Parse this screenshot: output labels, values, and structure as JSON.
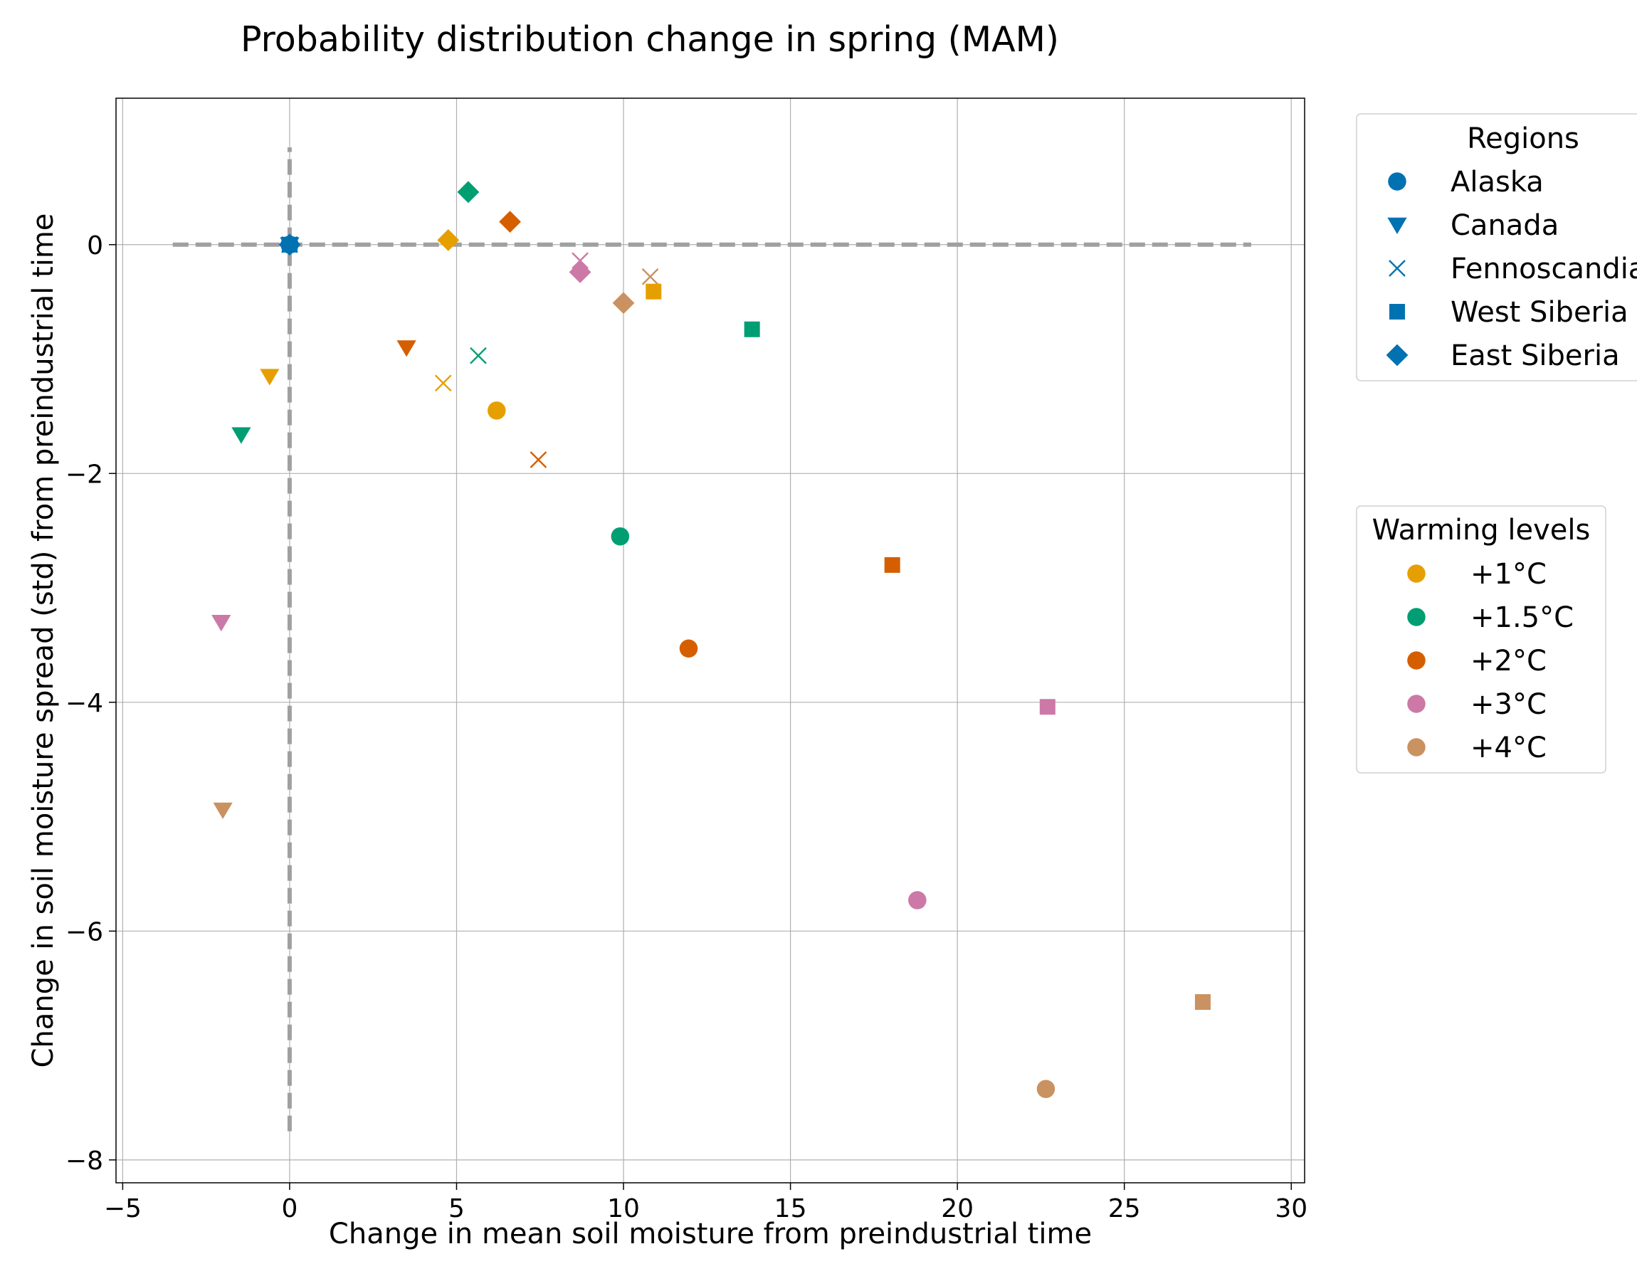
{
  "chart_data": {
    "type": "scatter",
    "title": "Probability distribution change in spring (MAM)",
    "xlabel": "Change in mean soil moisture from preindustrial time",
    "ylabel": "Change in soil moisture spread (std) from preindustrial time",
    "xlim": [
      -5.2,
      30.4
    ],
    "ylim": [
      -8.2,
      1.28
    ],
    "xticks": [
      -5,
      0,
      5,
      10,
      15,
      20,
      25,
      30
    ],
    "xtick_labels": [
      "−5",
      "0",
      "5",
      "10",
      "15",
      "20",
      "25",
      "30"
    ],
    "yticks": [
      -8,
      -6,
      -4,
      -2,
      0
    ],
    "ytick_labels": [
      "−8",
      "−6",
      "−4",
      "−2",
      "0"
    ],
    "grid": true,
    "reference_lines": {
      "horizontal": {
        "y": 0,
        "x_from": -3.5,
        "x_to": 28.8,
        "style": "dashed",
        "color": "#a0a0a0"
      },
      "vertical": {
        "x": 0,
        "y_from": -7.75,
        "y_to": 0.85,
        "style": "dashed",
        "color": "#a0a0a0"
      }
    },
    "regions_legend": {
      "title": "Regions",
      "placement": "outside right, upper",
      "color": "#0072B2",
      "entries": [
        {
          "name": "Alaska",
          "marker": "circle"
        },
        {
          "name": "Canada",
          "marker": "triangle-down"
        },
        {
          "name": "Fennoscandia",
          "marker": "x"
        },
        {
          "name": "West Siberia",
          "marker": "square"
        },
        {
          "name": "East Siberia",
          "marker": "diamond"
        }
      ]
    },
    "warming_legend": {
      "title": "Warming levels",
      "placement": "outside right, middle",
      "entries": [
        {
          "name": "+1°C",
          "color": "#E69F00"
        },
        {
          "name": "+1.5°C",
          "color": "#009E73"
        },
        {
          "name": "+2°C",
          "color": "#D55E00"
        },
        {
          "name": "+3°C",
          "color": "#CC79A7"
        },
        {
          "name": "+4°C",
          "color": "#CA9161"
        }
      ]
    },
    "points": [
      {
        "region": "Alaska",
        "marker": "circle",
        "level": 0,
        "x": 6.2,
        "y": -1.45
      },
      {
        "region": "Alaska",
        "marker": "circle",
        "level": 1,
        "x": 9.9,
        "y": -2.55
      },
      {
        "region": "Alaska",
        "marker": "circle",
        "level": 2,
        "x": 11.95,
        "y": -3.53
      },
      {
        "region": "Alaska",
        "marker": "circle",
        "level": 3,
        "x": 18.8,
        "y": -5.73
      },
      {
        "region": "Alaska",
        "marker": "circle",
        "level": 4,
        "x": 22.65,
        "y": -7.38
      },
      {
        "region": "Canada",
        "marker": "triangle-down",
        "level": 0,
        "x": -0.6,
        "y": -1.15
      },
      {
        "region": "Canada",
        "marker": "triangle-down",
        "level": 1,
        "x": -1.45,
        "y": -1.66
      },
      {
        "region": "Canada",
        "marker": "triangle-down",
        "level": 2,
        "x": 3.5,
        "y": -0.9
      },
      {
        "region": "Canada",
        "marker": "triangle-down",
        "level": 3,
        "x": -2.05,
        "y": -3.3
      },
      {
        "region": "Canada",
        "marker": "triangle-down",
        "level": 4,
        "x": -2.0,
        "y": -4.94
      },
      {
        "region": "Fennoscandia",
        "marker": "x",
        "level": 0,
        "x": 4.6,
        "y": -1.21
      },
      {
        "region": "Fennoscandia",
        "marker": "x",
        "level": 1,
        "x": 5.65,
        "y": -0.97
      },
      {
        "region": "Fennoscandia",
        "marker": "x",
        "level": 2,
        "x": 7.45,
        "y": -1.88
      },
      {
        "region": "Fennoscandia",
        "marker": "x",
        "level": 3,
        "x": 8.7,
        "y": -0.14
      },
      {
        "region": "Fennoscandia",
        "marker": "x",
        "level": 4,
        "x": 10.8,
        "y": -0.28
      },
      {
        "region": "West Siberia",
        "marker": "square",
        "level": 0,
        "x": 10.9,
        "y": -0.41
      },
      {
        "region": "West Siberia",
        "marker": "square",
        "level": 1,
        "x": 13.85,
        "y": -0.74
      },
      {
        "region": "West Siberia",
        "marker": "square",
        "level": 2,
        "x": 18.05,
        "y": -2.8
      },
      {
        "region": "West Siberia",
        "marker": "square",
        "level": 3,
        "x": 22.7,
        "y": -4.04
      },
      {
        "region": "West Siberia",
        "marker": "square",
        "level": 4,
        "x": 27.35,
        "y": -6.62
      },
      {
        "region": "East Siberia",
        "marker": "diamond",
        "level": 0,
        "x": 4.75,
        "y": 0.04
      },
      {
        "region": "East Siberia",
        "marker": "diamond",
        "level": 1,
        "x": 5.35,
        "y": 0.46
      },
      {
        "region": "East Siberia",
        "marker": "diamond",
        "level": 2,
        "x": 6.6,
        "y": 0.2
      },
      {
        "region": "East Siberia",
        "marker": "diamond",
        "level": 3,
        "x": 8.7,
        "y": -0.24
      },
      {
        "region": "East Siberia",
        "marker": "diamond",
        "level": 4,
        "x": 10.0,
        "y": -0.51
      }
    ],
    "origin_markers": {
      "color": "#0072B2",
      "x": 0,
      "y": 0,
      "markers": [
        "circle",
        "triangle-down",
        "x",
        "square",
        "diamond"
      ]
    }
  }
}
